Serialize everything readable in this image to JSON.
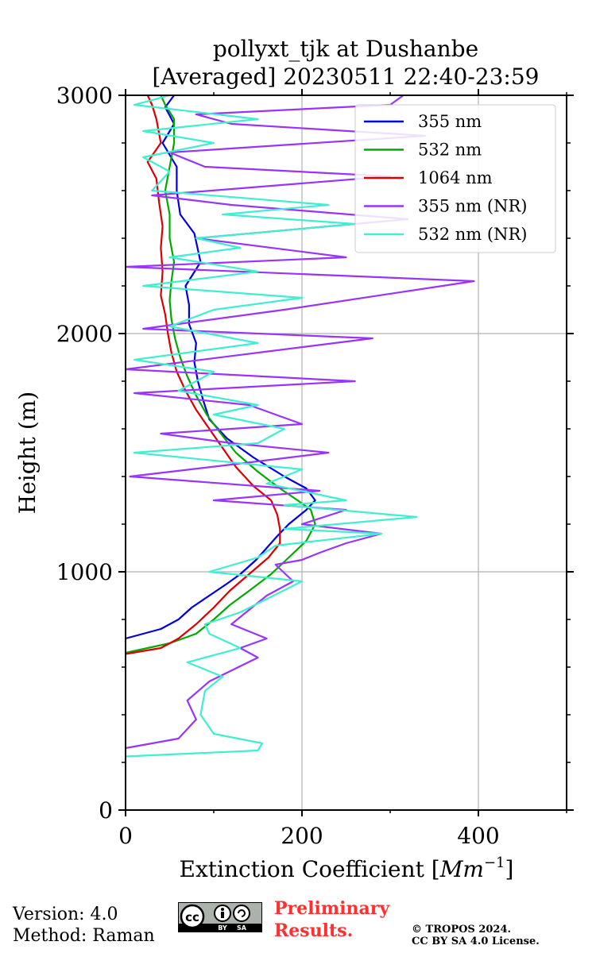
{
  "chart_data": {
    "type": "line",
    "title": [
      "pollyxt_tjk at Dushanbe",
      "[Averaged] 20230511 22:40-23:59"
    ],
    "xlabel": "Extinction Coefficient [",
    "xlabel_unit": "Mm",
    "xlabel_exp": "−1",
    "xlabel_close": "]",
    "ylabel": "Height (m)",
    "xlim": [
      0,
      500
    ],
    "ylim": [
      0,
      3000
    ],
    "x_ticks": [
      0,
      200,
      400
    ],
    "x_tick_labels": [
      "0",
      "200",
      "400"
    ],
    "y_ticks": [
      0,
      1000,
      2000,
      3000
    ],
    "y_tick_labels": [
      "0",
      "1000",
      "2000",
      "3000"
    ],
    "grid": true,
    "legend_position": "top-right",
    "series": [
      {
        "name": "355 nm",
        "color": "#0000e0",
        "points": [
          [
            0,
            720
          ],
          [
            40,
            760
          ],
          [
            60,
            800
          ],
          [
            75,
            850
          ],
          [
            95,
            900
          ],
          [
            115,
            950
          ],
          [
            130,
            990
          ],
          [
            148,
            1050
          ],
          [
            160,
            1100
          ],
          [
            172,
            1150
          ],
          [
            185,
            1200
          ],
          [
            205,
            1260
          ],
          [
            215,
            1300
          ],
          [
            205,
            1350
          ],
          [
            180,
            1400
          ],
          [
            145,
            1480
          ],
          [
            115,
            1560
          ],
          [
            95,
            1640
          ],
          [
            88,
            1720
          ],
          [
            82,
            1800
          ],
          [
            78,
            1880
          ],
          [
            80,
            1960
          ],
          [
            72,
            2040
          ],
          [
            72,
            2120
          ],
          [
            68,
            2200
          ],
          [
            85,
            2300
          ],
          [
            78,
            2420
          ],
          [
            62,
            2500
          ],
          [
            58,
            2600
          ],
          [
            58,
            2700
          ],
          [
            42,
            2800
          ],
          [
            55,
            2880
          ],
          [
            45,
            2950
          ],
          [
            55,
            3000
          ]
        ]
      },
      {
        "name": "532 nm",
        "color": "#00aa00",
        "points": [
          [
            0,
            660
          ],
          [
            50,
            700
          ],
          [
            80,
            740
          ],
          [
            100,
            800
          ],
          [
            118,
            860
          ],
          [
            140,
            920
          ],
          [
            165,
            990
          ],
          [
            185,
            1060
          ],
          [
            205,
            1130
          ],
          [
            215,
            1200
          ],
          [
            210,
            1260
          ],
          [
            195,
            1300
          ],
          [
            175,
            1350
          ],
          [
            150,
            1420
          ],
          [
            125,
            1500
          ],
          [
            108,
            1580
          ],
          [
            92,
            1660
          ],
          [
            80,
            1740
          ],
          [
            70,
            1820
          ],
          [
            62,
            1900
          ],
          [
            56,
            1980
          ],
          [
            52,
            2060
          ],
          [
            50,
            2140
          ],
          [
            52,
            2220
          ],
          [
            55,
            2300
          ],
          [
            50,
            2400
          ],
          [
            50,
            2500
          ],
          [
            45,
            2600
          ],
          [
            50,
            2700
          ],
          [
            55,
            2800
          ],
          [
            55,
            2900
          ],
          [
            45,
            2960
          ],
          [
            40,
            3000
          ]
        ]
      },
      {
        "name": "1064 nm",
        "color": "#dd0000",
        "points": [
          [
            0,
            655
          ],
          [
            40,
            680
          ],
          [
            60,
            720
          ],
          [
            80,
            780
          ],
          [
            100,
            850
          ],
          [
            118,
            920
          ],
          [
            140,
            990
          ],
          [
            162,
            1060
          ],
          [
            175,
            1120
          ],
          [
            175,
            1180
          ],
          [
            172,
            1240
          ],
          [
            165,
            1300
          ],
          [
            145,
            1360
          ],
          [
            125,
            1440
          ],
          [
            110,
            1520
          ],
          [
            95,
            1600
          ],
          [
            80,
            1680
          ],
          [
            68,
            1760
          ],
          [
            58,
            1840
          ],
          [
            52,
            1920
          ],
          [
            48,
            2000
          ],
          [
            45,
            2080
          ],
          [
            40,
            2160
          ],
          [
            42,
            2260
          ],
          [
            40,
            2360
          ],
          [
            42,
            2450
          ],
          [
            38,
            2550
          ],
          [
            35,
            2650
          ],
          [
            25,
            2720
          ],
          [
            40,
            2800
          ],
          [
            35,
            2900
          ],
          [
            30,
            2960
          ],
          [
            25,
            3000
          ]
        ]
      },
      {
        "name": "355 nm (NR)",
        "color": "#9933ff",
        "points": [
          [
            0,
            260
          ],
          [
            60,
            300
          ],
          [
            80,
            380
          ],
          [
            70,
            460
          ],
          [
            95,
            540
          ],
          [
            150,
            640
          ],
          [
            130,
            680
          ],
          [
            160,
            720
          ],
          [
            120,
            780
          ],
          [
            160,
            900
          ],
          [
            190,
            960
          ],
          [
            170,
            1030
          ],
          [
            200,
            1050
          ],
          [
            220,
            1080
          ],
          [
            250,
            1120
          ],
          [
            290,
            1160
          ],
          [
            200,
            1200
          ],
          [
            250,
            1260
          ],
          [
            100,
            1300
          ],
          [
            220,
            1340
          ],
          [
            5,
            1400
          ],
          [
            120,
            1450
          ],
          [
            230,
            1500
          ],
          [
            120,
            1540
          ],
          [
            40,
            1580
          ],
          [
            200,
            1620
          ],
          [
            140,
            1700
          ],
          [
            10,
            1750
          ],
          [
            260,
            1800
          ],
          [
            0,
            1850
          ],
          [
            280,
            1980
          ],
          [
            20,
            2020
          ],
          [
            180,
            2100
          ],
          [
            395,
            2220
          ],
          [
            0,
            2280
          ],
          [
            250,
            2320
          ],
          [
            80,
            2400
          ],
          [
            320,
            2480
          ],
          [
            120,
            2540
          ],
          [
            30,
            2580
          ],
          [
            300,
            2660
          ],
          [
            90,
            2700
          ],
          [
            50,
            2760
          ],
          [
            340,
            2830
          ],
          [
            120,
            2880
          ],
          [
            80,
            2920
          ],
          [
            300,
            2960
          ],
          [
            315,
            3000
          ]
        ]
      },
      {
        "name": "532 nm (NR)",
        "color": "#40eed0",
        "points": [
          [
            0,
            225
          ],
          [
            150,
            250
          ],
          [
            155,
            280
          ],
          [
            100,
            320
          ],
          [
            85,
            400
          ],
          [
            90,
            500
          ],
          [
            110,
            560
          ],
          [
            70,
            620
          ],
          [
            130,
            680
          ],
          [
            95,
            740
          ],
          [
            90,
            780
          ],
          [
            130,
            830
          ],
          [
            200,
            960
          ],
          [
            95,
            1000
          ],
          [
            150,
            1060
          ],
          [
            170,
            1110
          ],
          [
            290,
            1160
          ],
          [
            180,
            1180
          ],
          [
            330,
            1230
          ],
          [
            180,
            1280
          ],
          [
            250,
            1300
          ],
          [
            160,
            1370
          ],
          [
            200,
            1430
          ],
          [
            10,
            1500
          ],
          [
            150,
            1540
          ],
          [
            180,
            1600
          ],
          [
            100,
            1660
          ],
          [
            150,
            1700
          ],
          [
            60,
            1760
          ],
          [
            100,
            1840
          ],
          [
            10,
            1890
          ],
          [
            150,
            1960
          ],
          [
            50,
            2030
          ],
          [
            100,
            2100
          ],
          [
            200,
            2150
          ],
          [
            20,
            2200
          ],
          [
            150,
            2260
          ],
          [
            50,
            2320
          ],
          [
            130,
            2360
          ],
          [
            80,
            2400
          ],
          [
            260,
            2460
          ],
          [
            110,
            2500
          ],
          [
            230,
            2540
          ],
          [
            30,
            2600
          ],
          [
            50,
            2680
          ],
          [
            20,
            2740
          ],
          [
            100,
            2800
          ],
          [
            20,
            2850
          ],
          [
            150,
            2900
          ],
          [
            10,
            2960
          ],
          [
            50,
            3000
          ]
        ]
      }
    ]
  },
  "footer": {
    "version": "Version: 4.0",
    "method": "Method: Raman",
    "preliminary_line1": "Preliminary",
    "preliminary_line2": "Results.",
    "copyright_line1": "© TROPOS 2024.",
    "copyright_line2": "CC BY SA 4.0 License.",
    "cc_text": "cc",
    "cc_by": "BY",
    "cc_sa": "SA"
  }
}
